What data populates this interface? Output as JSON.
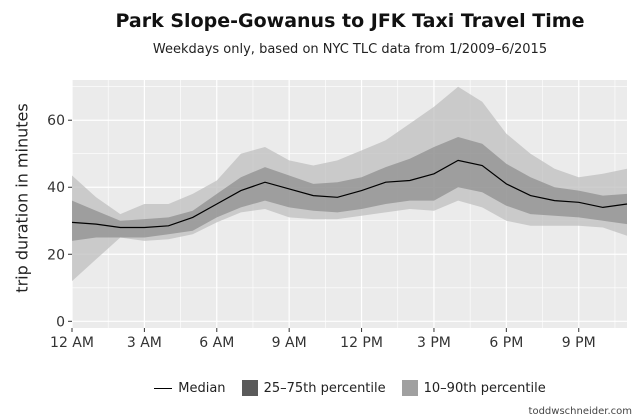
{
  "colors": {
    "band90": "#bfbfbf",
    "band75": "#8c8c8c",
    "median": "#000000",
    "panel": "#ebebeb",
    "grid": "#ffffff"
  },
  "chart_data": {
    "type": "area",
    "title": "Park Slope-Gowanus to JFK Taxi Travel Time",
    "subtitle": "Weekdays only, based on NYC TLC data from 1/2009–6/2015",
    "ylabel": "trip duration in minutes",
    "xlabel": "",
    "x_ticks": [
      "12 AM",
      "3 AM",
      "6 AM",
      "9 AM",
      "12 PM",
      "3 PM",
      "6 PM",
      "9 PM"
    ],
    "x_tick_hours": [
      0,
      3,
      6,
      9,
      12,
      15,
      18,
      21
    ],
    "xlim": [
      0,
      23
    ],
    "y_ticks": [
      0,
      20,
      40,
      60
    ],
    "ylim": [
      -2,
      72
    ],
    "grid": true,
    "legend_position": "bottom",
    "hours": [
      0,
      1,
      2,
      3,
      4,
      5,
      6,
      7,
      8,
      9,
      10,
      11,
      12,
      13,
      14,
      15,
      16,
      17,
      18,
      19,
      20,
      21,
      22,
      23
    ],
    "series": [
      {
        "name": "Median",
        "type": "line",
        "values": [
          29.5,
          29,
          28,
          28,
          28.5,
          31,
          35,
          39,
          41.5,
          39.5,
          37.5,
          37,
          39,
          41.5,
          42,
          44,
          48,
          46.5,
          41,
          37.5,
          36,
          35.5,
          34,
          35
        ]
      },
      {
        "name": "25–75th percentile",
        "type": "band",
        "lower": [
          24,
          25,
          25,
          25,
          26,
          27,
          31,
          34,
          36,
          34,
          33,
          32.5,
          33.5,
          35,
          36,
          36,
          40,
          38.5,
          34.5,
          32,
          31.5,
          31,
          30,
          29
        ],
        "upper": [
          36,
          33,
          30,
          30.5,
          31,
          33,
          38,
          43,
          46,
          43.5,
          41,
          41.5,
          43,
          46,
          48.5,
          52,
          55,
          53,
          47,
          43,
          40,
          39,
          37.5,
          38
        ]
      },
      {
        "name": "10–90th percentile",
        "type": "band",
        "lower": [
          12,
          18.5,
          25,
          24,
          24.5,
          26,
          29.5,
          32.5,
          33.5,
          31,
          30.5,
          30.5,
          31.5,
          32.5,
          33.5,
          33,
          36,
          34,
          30,
          28.5,
          28.5,
          28.5,
          28,
          25.5
        ],
        "upper": [
          43.5,
          37,
          32,
          35,
          35,
          38,
          42,
          50,
          52,
          48,
          46.5,
          48,
          51,
          54,
          59,
          64,
          70,
          65.5,
          56,
          50,
          45.5,
          43,
          44,
          45.5
        ]
      }
    ]
  },
  "credit": "toddwschneider.com"
}
